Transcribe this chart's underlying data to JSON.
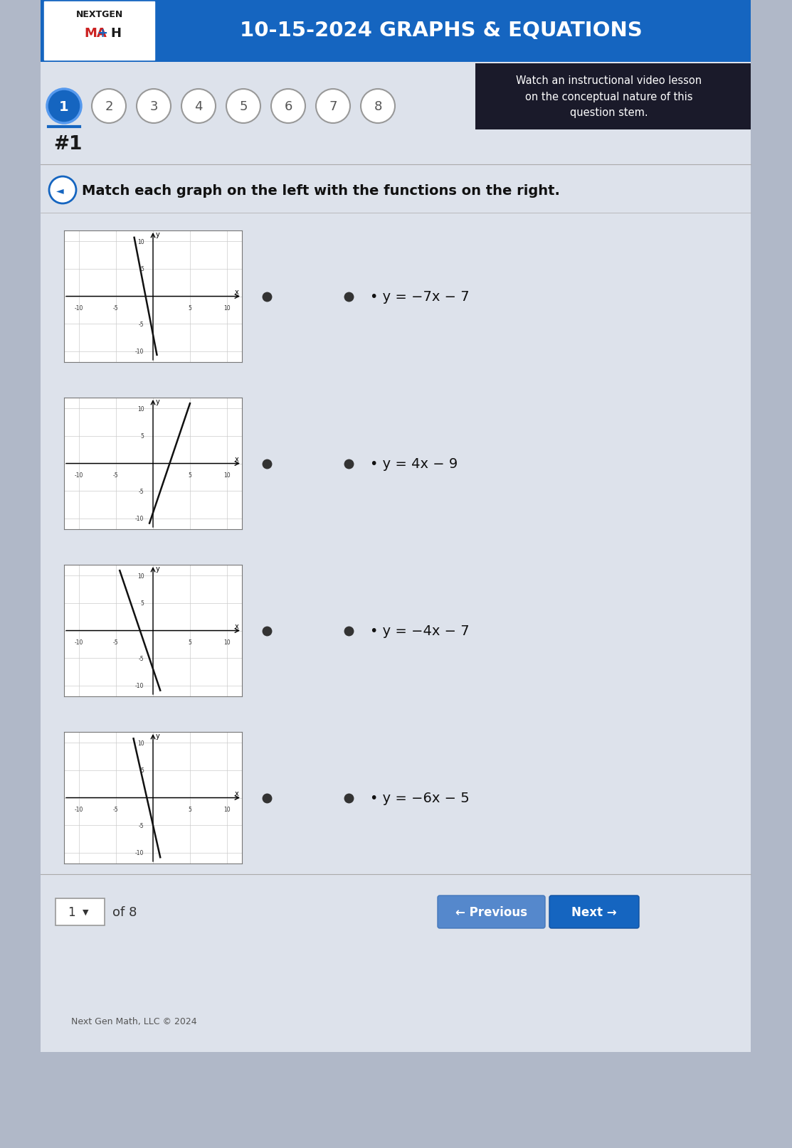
{
  "header_bg": "#1565c0",
  "header_text": "10-15-2024 GRAPHS & EQUATIONS",
  "page_bg": "#b0b8c8",
  "content_bg": "#e8eaf0",
  "title_text": "#1",
  "instruction": "Match each graph on the left with the functions on the right.",
  "functions": [
    "y = −7x − 7",
    "y = 4x − 9",
    "y = −4x − 7",
    "y = −6x − 5"
  ],
  "func_labels_raw": [
    "y=-7x-7",
    "y=4x-9",
    "y=-4x-7",
    "y=-6x-5"
  ],
  "graph_slopes": [
    -7,
    4,
    -4,
    -6
  ],
  "graph_intercepts": [
    -7,
    -9,
    -7,
    -5
  ],
  "num_buttons": 8,
  "footer_text": "Next Gen Math, LLC © 2024",
  "watch_text": "Watch an instructional video lesson\non the conceptual nature of this\nquestion stem.",
  "logo_nextgen_color": "#222222",
  "logo_math_color": "#cc2222",
  "logo_plus_color": "#1565c0"
}
